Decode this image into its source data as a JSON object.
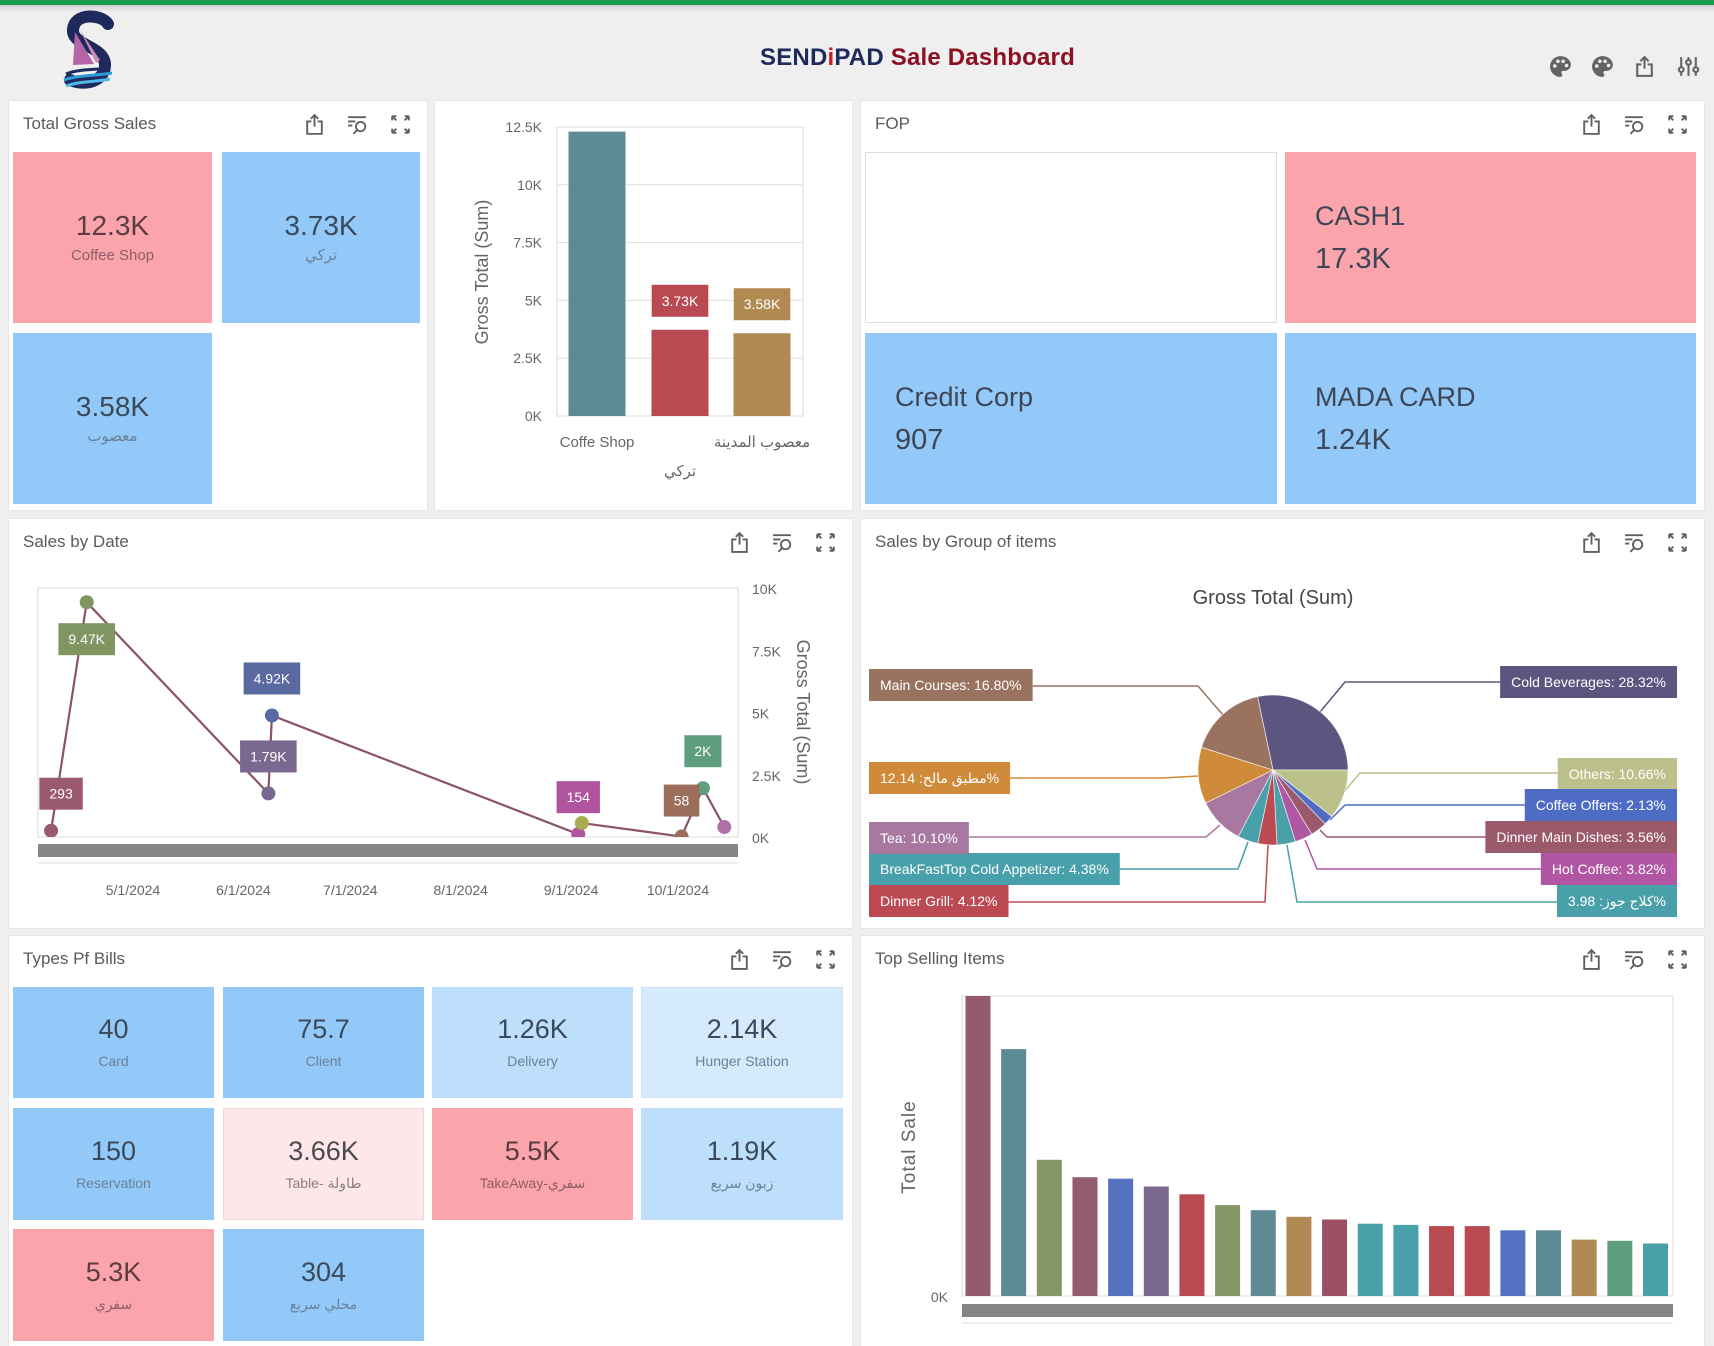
{
  "header": {
    "brand_send": "SEND",
    "brand_i": "i",
    "brand_pad": "PAD",
    "title_rest": "Sale Dashboard",
    "icons": [
      "palette-icon",
      "palette-icon",
      "export-icon",
      "sliders-icon"
    ]
  },
  "colors": {
    "top_bar": "#1a9c4e",
    "brand_navy": "#1f2a5c",
    "brand_i_red": "#d0182a",
    "title_rest_red": "#8b1022",
    "tile_pink": "#fba4ab",
    "tile_blue": "#93c9f9",
    "tile_blue_light": "#bddffb",
    "tile_blue_pale": "#d5eafd",
    "tile_pink_pale": "#fde7e9",
    "icon_gray": "#5f5f5f"
  },
  "panel_tools": [
    "export-icon",
    "filter-search-icon",
    "fullscreen-icon"
  ],
  "panels": {
    "total_gross_sales": {
      "title": "Total Gross Sales",
      "cards": [
        {
          "value": "12.3K",
          "label": "Coffee Shop",
          "color": "#fba4ab"
        },
        {
          "value": "3.73K",
          "label": "تركي",
          "color": "#93c9f9"
        },
        {
          "value": "3.58K",
          "label": "معصوب",
          "color": "#93c9f9"
        }
      ]
    },
    "fop": {
      "title": "FOP",
      "cards": [
        {
          "label": "",
          "value": "",
          "color": "#ffffff"
        },
        {
          "label": "CASH1",
          "value": "17.3K",
          "color": "#fba4ab"
        },
        {
          "label": "Credit Corp",
          "value": "907",
          "color": "#93c9f9"
        },
        {
          "label": "MADA CARD",
          "value": "1.24K",
          "color": "#93c9f9"
        }
      ]
    },
    "sales_by_date": {
      "title": "Sales by Date"
    },
    "sales_by_group": {
      "title": "Sales by Group of items"
    },
    "types_of_bills": {
      "title": "Types Pf Bills",
      "cards": [
        {
          "value": "40",
          "label": "Card",
          "color": "#93c9f9"
        },
        {
          "value": "75.7",
          "label": "Client",
          "color": "#93c9f9"
        },
        {
          "value": "1.26K",
          "label": "Delivery",
          "color": "#bddffb"
        },
        {
          "value": "2.14K",
          "label": "Hunger Station",
          "color": "#d5eafd"
        },
        {
          "value": "150",
          "label": "Reservation",
          "color": "#93c9f9"
        },
        {
          "value": "3.66K",
          "label": "Table- طاولة",
          "color": "#fde7e9"
        },
        {
          "value": "5.5K",
          "label": "TakeAway-سفري",
          "color": "#fba4ab"
        },
        {
          "value": "1.19K",
          "label": "زبون سريع",
          "color": "#bddffb"
        },
        {
          "value": "5.3K",
          "label": "سفري",
          "color": "#fba4ab"
        },
        {
          "value": "304",
          "label": "محلي سريع",
          "color": "#93c9f9"
        }
      ]
    },
    "top_selling_items": {
      "title": "Top Selling Items"
    }
  },
  "chart_data": [
    {
      "id": "gross_by_branch",
      "type": "bar",
      "title": "",
      "categories": [
        "Coffe Shop",
        "تركي",
        "معصوب المدينة"
      ],
      "values": [
        12300,
        3730,
        3580
      ],
      "data_labels": [
        "12.3K",
        "3.73K",
        "3.58K"
      ],
      "data_labels_visible": [
        false,
        true,
        true
      ],
      "colors": [
        "#5e8a93",
        "#b94a52",
        "#b08a52"
      ],
      "xlabel": "",
      "ylabel": "Gross Total (Sum)",
      "ylim": [
        0,
        12500
      ],
      "yticks": [
        {
          "value": 0,
          "label": "0K"
        },
        {
          "value": 2500,
          "label": "2.5K"
        },
        {
          "value": 5000,
          "label": "5K"
        },
        {
          "value": 7500,
          "label": "7.5K"
        },
        {
          "value": 10000,
          "label": "10K"
        },
        {
          "value": 12500,
          "label": "12.5K"
        }
      ],
      "grid": true,
      "legend": "none"
    },
    {
      "id": "sales_by_date",
      "type": "line",
      "title": "",
      "xlabel": "",
      "ylabel": "Gross Total (Sum)",
      "y_axis_side": "right",
      "ylim": [
        0,
        10000
      ],
      "yticks": [
        {
          "value": 0,
          "label": "0K"
        },
        {
          "value": 2500,
          "label": "2.5K"
        },
        {
          "value": 5000,
          "label": "5K"
        },
        {
          "value": 7500,
          "label": "7.5K"
        },
        {
          "value": 10000,
          "label": "10K"
        }
      ],
      "xticks": [
        "5/1/2024",
        "6/1/2024",
        "7/1/2024",
        "8/1/2024",
        "9/1/2024",
        "10/1/2024"
      ],
      "line_color": "#8a5466",
      "points": [
        {
          "date": "2024-04-08",
          "value": 293,
          "label": "293",
          "color": "#9a5a6e"
        },
        {
          "date": "2024-04-18",
          "value": 9470,
          "label": "9.47K",
          "color": "#7f9662"
        },
        {
          "date": "2024-06-08",
          "value": 1790,
          "label": "1.79K",
          "color": "#7b6890"
        },
        {
          "date": "2024-06-09",
          "value": 4920,
          "label": "4.92K",
          "color": "#5a6aa0"
        },
        {
          "date": "2024-09-03",
          "value": 154,
          "label": "154",
          "color": "#b054a0"
        },
        {
          "date": "2024-09-04",
          "value": 600,
          "label": "",
          "color": "#a8ac50"
        },
        {
          "date": "2024-10-02",
          "value": 58,
          "label": "58",
          "color": "#9a6e5a"
        },
        {
          "date": "2024-10-08",
          "value": 2000,
          "label": "2K",
          "color": "#5e9e7e"
        },
        {
          "date": "2024-10-14",
          "value": 440,
          "label": "",
          "color": "#b070a8"
        }
      ],
      "grid": false,
      "legend": "none"
    },
    {
      "id": "sales_by_group",
      "type": "pie",
      "title": "Gross Total (Sum)",
      "slices": [
        {
          "label": "Cold Beverages",
          "percent": 28.32,
          "color": "#5b5680"
        },
        {
          "label": "Others",
          "percent": 10.66,
          "color": "#bcc18b"
        },
        {
          "label": "Coffee Offers",
          "percent": 2.13,
          "color": "#4f6cc4"
        },
        {
          "label": "Dinner Main Dishes",
          "percent": 3.56,
          "color": "#9a5a6c"
        },
        {
          "label": "Hot Coffee",
          "percent": 3.82,
          "color": "#b056a2"
        },
        {
          "label": "كلاج جوز",
          "percent": 3.98,
          "color": "#4aa0a8"
        },
        {
          "label": "Dinner Grill",
          "percent": 4.12,
          "color": "#bb4a52"
        },
        {
          "label": "BreakFastTop Cold Appetizer",
          "percent": 4.38,
          "color": "#48a0aa"
        },
        {
          "label": "Tea",
          "percent": 10.1,
          "color": "#a878a0"
        },
        {
          "label": "مطبق مالح",
          "percent": 12.14,
          "color": "#cf8a3a"
        },
        {
          "label": "Main Courses",
          "percent": 16.8,
          "color": "#9a7260"
        }
      ],
      "legend": "none (outside data labels)"
    },
    {
      "id": "top_selling_items",
      "type": "bar",
      "title": "",
      "categories": [],
      "value_units": "relative to tallest bar (=100); axis shows only 0K",
      "values": [
        100,
        82.3,
        45.4,
        39.6,
        39.1,
        36.5,
        33.9,
        30.3,
        28.6,
        26.4,
        25.5,
        24.1,
        23.7,
        23.3,
        23.3,
        21.9,
        21.9,
        18.8,
        18.4,
        17.5
      ],
      "colors": [
        "#945a6e",
        "#5e8a93",
        "#859664",
        "#935d6f",
        "#5472c0",
        "#7b6890",
        "#b94a52",
        "#869664",
        "#5e8a93",
        "#b08a52",
        "#9c5063",
        "#4aa0a8",
        "#4aa0a8",
        "#b94a52",
        "#b94a52",
        "#5472c0",
        "#5e8a93",
        "#b08a52",
        "#5e9e7e",
        "#4aa0a8"
      ],
      "xlabel": "",
      "ylabel": "Total Sale",
      "ylim": [
        0,
        100
      ],
      "yticks": [
        {
          "value": 0,
          "label": "0K"
        }
      ],
      "grid": false,
      "legend": "none"
    }
  ]
}
